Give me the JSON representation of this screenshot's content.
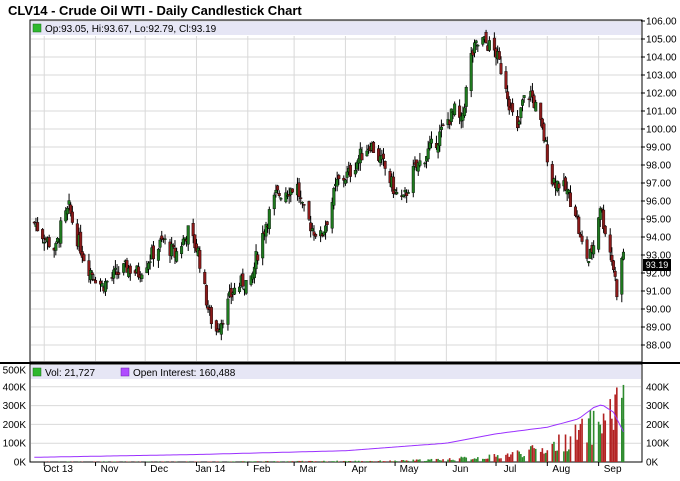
{
  "title": "CLV14 - Crude Oil WTI - Daily Candlestick Chart",
  "price_legend": "Op:93.05, Hi:93.67, Lo:92.79, Cl:93.19",
  "last_price_label": "93.19",
  "volume_legend": "Vol: 21,727",
  "oi_legend": "Open Interest: 160,488",
  "colors": {
    "up": "#1f7a1f",
    "down": "#8b1a1a",
    "legend_band": "#e6e6f5",
    "oi_line": "#9b30ff",
    "vol_up": "#2e8b2e",
    "vol_down": "#b22222"
  },
  "x_axis_labels": [
    "Oct 13",
    "Nov",
    "Dec",
    "Jan 14",
    "Feb",
    "Mar",
    "Apr",
    "May",
    "Jun",
    "Jul",
    "Aug",
    "Sep"
  ],
  "chart_data": [
    {
      "type": "candlestick",
      "title": "CLV14 - Crude Oil WTI - Daily Candlestick Chart",
      "ylim": [
        88,
        106
      ],
      "yticks": [
        88,
        89,
        90,
        91,
        92,
        93,
        94,
        95,
        96,
        97,
        98,
        99,
        100,
        101,
        102,
        103,
        104,
        105,
        106
      ],
      "x_labels": [
        "Oct 13",
        "Nov",
        "Dec",
        "Jan 14",
        "Feb",
        "Mar",
        "Apr",
        "May",
        "Jun",
        "Jul",
        "Aug",
        "Sep"
      ],
      "close_path_points": [
        {
          "date": "Sep 25",
          "close": 94.8
        },
        {
          "date": "Oct 1",
          "close": 94.0
        },
        {
          "date": "Oct 8",
          "close": 93.3
        },
        {
          "date": "Oct 11",
          "close": 94.5
        },
        {
          "date": "Oct 16",
          "close": 95.6
        },
        {
          "date": "Oct 20",
          "close": 94.2
        },
        {
          "date": "Oct 27",
          "close": 92.4
        },
        {
          "date": "Nov 5",
          "close": 91.3
        },
        {
          "date": "Nov 13",
          "close": 91.9
        },
        {
          "date": "Nov 20",
          "close": 92.3
        },
        {
          "date": "Nov 27",
          "close": 92.0
        },
        {
          "date": "Dec 5",
          "close": 93.0
        },
        {
          "date": "Dec 12",
          "close": 93.8
        },
        {
          "date": "Dec 19",
          "close": 93.0
        },
        {
          "date": "Dec 27",
          "close": 94.3
        },
        {
          "date": "Jan 2",
          "close": 93.2
        },
        {
          "date": "Jan 6",
          "close": 91.0
        },
        {
          "date": "Jan 9",
          "close": 89.6
        },
        {
          "date": "Jan 13",
          "close": 88.8
        },
        {
          "date": "Jan 17",
          "close": 89.6
        },
        {
          "date": "Jan 23",
          "close": 91.0
        },
        {
          "date": "Jan 29",
          "close": 91.5
        },
        {
          "date": "Feb 3",
          "close": 91.4
        },
        {
          "date": "Feb 6",
          "close": 92.8
        },
        {
          "date": "Feb 12",
          "close": 94.8
        },
        {
          "date": "Feb 18",
          "close": 96.3
        },
        {
          "date": "Feb 24",
          "close": 96.6
        },
        {
          "date": "Mar 3",
          "close": 96.8
        },
        {
          "date": "Mar 6",
          "close": 95.5
        },
        {
          "date": "Mar 12",
          "close": 94.5
        },
        {
          "date": "Mar 17",
          "close": 94.0
        },
        {
          "date": "Mar 21",
          "close": 95.0
        },
        {
          "date": "Mar 27",
          "close": 97.0
        },
        {
          "date": "Apr 3",
          "close": 97.5
        },
        {
          "date": "Apr 10",
          "close": 98.5
        },
        {
          "date": "Apr 16",
          "close": 99.2
        },
        {
          "date": "Apr 24",
          "close": 98.0
        },
        {
          "date": "May 1",
          "close": 96.5
        },
        {
          "date": "May 6",
          "close": 96.0
        },
        {
          "date": "May 12",
          "close": 97.6
        },
        {
          "date": "May 19",
          "close": 98.5
        },
        {
          "date": "May 27",
          "close": 99.5
        },
        {
          "date": "Jun 2",
          "close": 100.5
        },
        {
          "date": "Jun 6",
          "close": 101.0
        },
        {
          "date": "Jun 10",
          "close": 100.3
        },
        {
          "date": "Jun 12",
          "close": 101.5
        },
        {
          "date": "Jun 16",
          "close": 104.0
        },
        {
          "date": "Jun 19",
          "close": 104.6
        },
        {
          "date": "Jun 23",
          "close": 104.9
        },
        {
          "date": "Jun 26",
          "close": 104.7
        },
        {
          "date": "Jul 1",
          "close": 104.2
        },
        {
          "date": "Jul 7",
          "close": 102.5
        },
        {
          "date": "Jul 10",
          "close": 101.0
        },
        {
          "date": "Jul 14",
          "close": 99.8
        },
        {
          "date": "Jul 17",
          "close": 101.5
        },
        {
          "date": "Jul 22",
          "close": 102.0
        },
        {
          "date": "Jul 25",
          "close": 101.2
        },
        {
          "date": "Jul 30",
          "close": 99.5
        },
        {
          "date": "Aug 4",
          "close": 97.2
        },
        {
          "date": "Aug 8",
          "close": 97.0
        },
        {
          "date": "Aug 13",
          "close": 96.5
        },
        {
          "date": "Aug 18",
          "close": 95.5
        },
        {
          "date": "Aug 21",
          "close": 93.8
        },
        {
          "date": "Aug 26",
          "close": 92.7
        },
        {
          "date": "Aug 29",
          "close": 93.6
        },
        {
          "date": "Sep 2",
          "close": 95.8
        },
        {
          "date": "Sep 4",
          "close": 94.8
        },
        {
          "date": "Sep 8",
          "close": 93.2
        },
        {
          "date": "Sep 10",
          "close": 92.3
        },
        {
          "date": "Sep 12",
          "close": 91.0
        },
        {
          "date": "Sep 16",
          "close": 93.19
        }
      ]
    },
    {
      "type": "bar+line",
      "title": "Volume / Open Interest",
      "ylim": [
        0,
        500000
      ],
      "yticks": [
        0,
        100000,
        200000,
        300000,
        400000,
        500000
      ],
      "ytick_labels": [
        "0K",
        "100K",
        "200K",
        "300K",
        "400K",
        "500K"
      ],
      "series": [
        {
          "name": "Vol",
          "last": 21727
        },
        {
          "name": "Open Interest",
          "last": 160488,
          "points": [
            {
              "date": "Sep 25",
              "value": 25000
            },
            {
              "date": "Jan 2",
              "value": 40000
            },
            {
              "date": "Apr 1",
              "value": 60000
            },
            {
              "date": "Jun 1",
              "value": 100000
            },
            {
              "date": "Jul 1",
              "value": 150000
            },
            {
              "date": "Aug 1",
              "value": 185000
            },
            {
              "date": "Aug 20",
              "value": 230000
            },
            {
              "date": "Aug 29",
              "value": 290000
            },
            {
              "date": "Sep 3",
              "value": 305000
            },
            {
              "date": "Sep 10",
              "value": 265000
            },
            {
              "date": "Sep 16",
              "value": 160488
            }
          ]
        }
      ],
      "volume_envelope": [
        {
          "date": "Sep 25",
          "value": 2000
        },
        {
          "date": "Jan 2",
          "value": 3000
        },
        {
          "date": "May 1",
          "value": 8000
        },
        {
          "date": "Jun 1",
          "value": 20000
        },
        {
          "date": "Jul 1",
          "value": 40000
        },
        {
          "date": "Aug 1",
          "value": 100000
        },
        {
          "date": "Aug 20",
          "value": 200000
        },
        {
          "date": "Sep 2",
          "value": 300000
        },
        {
          "date": "Sep 15",
          "value": 410000
        }
      ]
    }
  ]
}
